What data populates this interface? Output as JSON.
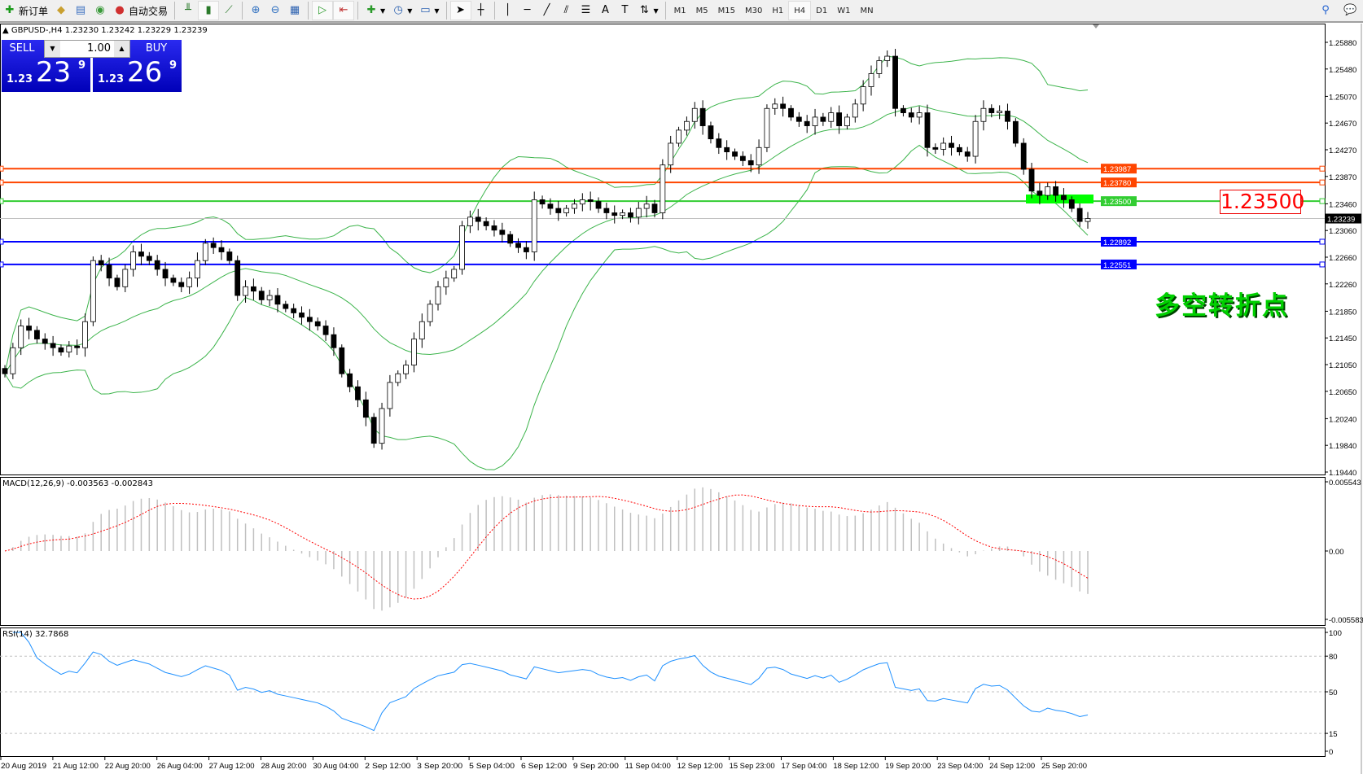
{
  "toolbar": {
    "new_order": "新订单",
    "auto_trading": "自动交易",
    "timeframes": [
      "M1",
      "M5",
      "M15",
      "M30",
      "H1",
      "H4",
      "D1",
      "W1",
      "MN"
    ],
    "active_timeframe": "H4"
  },
  "symbol_info": "GBPUSD-,H4  1.23230 1.23242 1.23229 1.23239",
  "trade_panel": {
    "sell_label": "SELL",
    "buy_label": "BUY",
    "lot": "1.00",
    "sell_prefix": "1.23",
    "sell_big": "23",
    "sell_sup": "9",
    "buy_prefix": "1.23",
    "buy_big": "26",
    "buy_sup": "9"
  },
  "annotation": {
    "price_box": "1.23500",
    "text": "多空转折点"
  },
  "macd_title": "MACD(12,26,9) -0.003563 -0.002843",
  "rsi_title": "RSI(14) 32.7868",
  "chart_data": {
    "type": "candlestick",
    "symbol": "GBPUSD-",
    "timeframe": "H4",
    "closes": [
      1.20913,
      1.21303,
      1.21629,
      1.21564,
      1.21434,
      1.21368,
      1.21303,
      1.21238,
      1.21329,
      1.21303,
      1.21694,
      1.22609,
      1.22543,
      1.22347,
      1.22217,
      1.22478,
      1.22739,
      1.22674,
      1.22609,
      1.22478,
      1.22347,
      1.22282,
      1.22217,
      1.22347,
      1.22609,
      1.22869,
      1.22804,
      1.22739,
      1.22609,
      1.22086,
      1.22217,
      1.22151,
      1.22021,
      1.22086,
      1.21955,
      1.2189,
      1.21825,
      1.2176,
      1.21694,
      1.21629,
      1.21499,
      1.21303,
      1.20913,
      1.20718,
      1.20522,
      1.20261,
      1.19871,
      1.20392,
      1.20783,
      1.20913,
      1.21043,
      1.21434,
      1.21694,
      1.21955,
      1.22217,
      1.22347,
      1.22478,
      1.2313,
      1.2326,
      1.23195,
      1.2313,
      1.23065,
      1.23,
      1.22869,
      1.22804,
      1.22739,
      1.23521,
      1.23456,
      1.23391,
      1.23325,
      1.23391,
      1.23456,
      1.23521,
      1.23495,
      1.23391,
      1.23325,
      1.23286,
      1.23325,
      1.2326,
      1.23391,
      1.23456,
      1.23325,
      1.24042,
      1.24368,
      1.24564,
      1.24694,
      1.24889,
      1.24629,
      1.24433,
      1.24303,
      1.24238,
      1.24172,
      1.24107,
      1.24042,
      1.24303,
      1.24889,
      1.24955,
      1.24889,
      1.24759,
      1.24694,
      1.24629,
      1.24759,
      1.24694,
      1.24824,
      1.24629,
      1.24759,
      1.24955,
      1.25215,
      1.25411,
      1.25606,
      1.25672,
      1.24889,
      1.24824,
      1.24759,
      1.24824,
      1.24303,
      1.24277,
      1.24368,
      1.24303,
      1.24238,
      1.24172,
      1.24694,
      1.24889,
      1.24824,
      1.2485,
      1.24694,
      1.24368,
      1.23977,
      1.23651,
      1.23586,
      1.23716,
      1.23586,
      1.23521,
      1.23391,
      1.23195,
      1.23239
    ],
    "price_ticks": [
      "1.25880",
      "1.25480",
      "1.25070",
      "1.24670",
      "1.24270",
      "1.23870",
      "1.23460",
      "1.23060",
      "1.22660",
      "1.22260",
      "1.21850",
      "1.21450",
      "1.21050",
      "1.20650",
      "1.20240",
      "1.19840",
      "1.19440"
    ],
    "ylim": [
      1.1944,
      1.2588
    ],
    "time_labels": [
      "20 Aug 2019",
      "21 Aug 12:00",
      "22 Aug 20:00",
      "26 Aug 04:00",
      "27 Aug 12:00",
      "28 Aug 20:00",
      "30 Aug 04:00",
      "2 Sep 12:00",
      "3 Sep 20:00",
      "5 Sep 04:00",
      "6 Sep 12:00",
      "9 Sep 20:00",
      "11 Sep 04:00",
      "12 Sep 12:00",
      "15 Sep 23:00",
      "17 Sep 04:00",
      "18 Sep 12:00",
      "19 Sep 20:00",
      "23 Sep 04:00",
      "24 Sep 12:00",
      "25 Sep 20:00"
    ],
    "hlines": [
      {
        "label": "1.23987",
        "value": 1.23987,
        "color": "#ff4500"
      },
      {
        "label": "1.23780",
        "value": 1.2378,
        "color": "#ff4500"
      },
      {
        "label": "1.23500",
        "value": 1.235,
        "color": "#32cd32"
      },
      {
        "label": "1.22892",
        "value": 1.22892,
        "color": "#0000ff"
      },
      {
        "label": "1.22551",
        "value": 1.22551,
        "color": "#0000ff"
      }
    ],
    "current_price": {
      "label": "1.23239",
      "value": 1.23239
    },
    "bollinger": {
      "period": 20,
      "deviation": 2,
      "color": "#3cb44b"
    },
    "macd": {
      "fast": 12,
      "slow": 26,
      "signal": 9,
      "ylim_labels": [
        "0.005543",
        "0.00",
        "-0.005583"
      ],
      "ylim": [
        -0.005583,
        0.005543
      ],
      "signal_color": "#ff0000"
    },
    "rsi": {
      "period": 14,
      "levels": [
        "100",
        "80",
        "50",
        "15",
        "0"
      ],
      "color": "#1e90ff"
    }
  }
}
